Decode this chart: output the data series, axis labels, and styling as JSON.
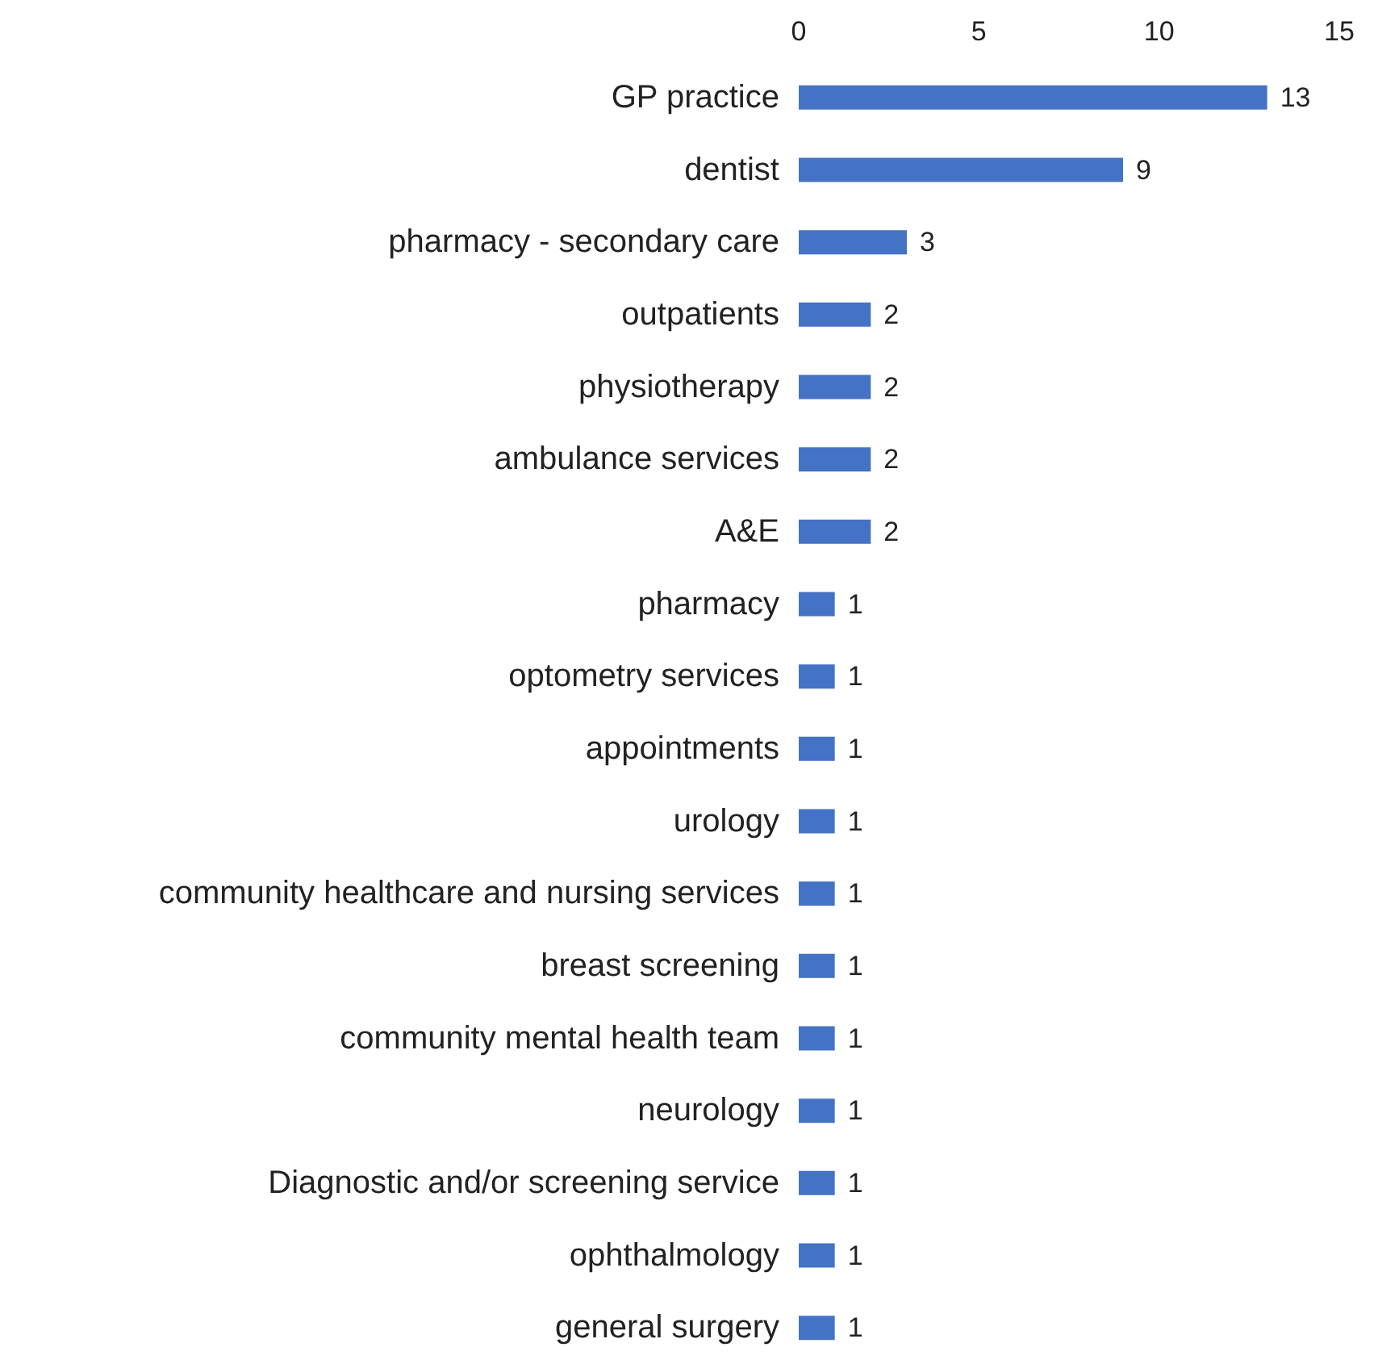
{
  "chart_data": {
    "type": "bar",
    "orientation": "horizontal",
    "categories": [
      "GP practice",
      "dentist",
      "pharmacy - secondary care",
      "outpatients",
      "physiotherapy",
      "ambulance services",
      "A&E",
      "pharmacy",
      "optometry services",
      "appointments",
      "urology",
      "community healthcare and nursing services",
      "breast screening",
      "community mental health team",
      "neurology",
      "Diagnostic and/or screening service",
      "ophthalmology",
      "general surgery"
    ],
    "values": [
      13,
      9,
      3,
      2,
      2,
      2,
      2,
      1,
      1,
      1,
      1,
      1,
      1,
      1,
      1,
      1,
      1,
      1
    ],
    "color": "#4472c4",
    "xlim": [
      0,
      15
    ],
    "xticks": [
      0,
      5,
      10,
      15
    ],
    "grid": false,
    "data_labels": true
  }
}
